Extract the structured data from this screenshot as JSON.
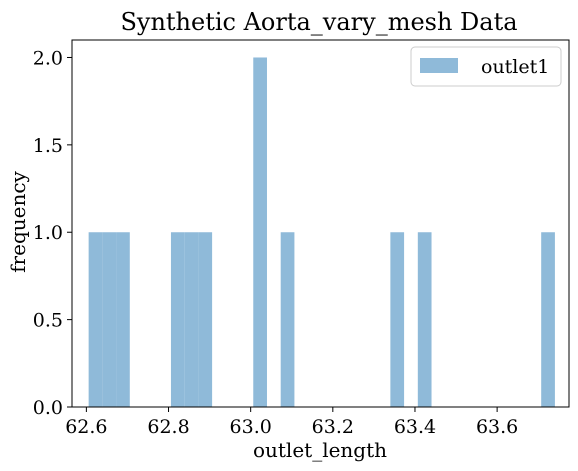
{
  "chart_data": {
    "type": "bar",
    "title": "Synthetic Aorta_vary_mesh Data",
    "xlabel": "outlet_length",
    "ylabel": "frequency",
    "xlim": [
      62.565,
      63.775
    ],
    "ylim": [
      0.0,
      2.1
    ],
    "xticks": [
      "62.6",
      "62.8",
      "63.0",
      "63.2",
      "63.4",
      "63.6"
    ],
    "xtick_values": [
      62.6,
      62.8,
      63.0,
      63.2,
      63.4,
      63.6
    ],
    "yticks": [
      "0.0",
      "0.5",
      "1.0",
      "1.5",
      "2.0"
    ],
    "ytick_values": [
      0.0,
      0.5,
      1.0,
      1.5,
      2.0
    ],
    "bin_width": 0.0334,
    "series": [
      {
        "name": "outlet1",
        "color": "#8fbad9",
        "bins": [
          {
            "x0": 62.6055,
            "x1": 62.6389,
            "count": 1
          },
          {
            "x0": 62.6389,
            "x1": 62.6723,
            "count": 1
          },
          {
            "x0": 62.6723,
            "x1": 62.7057,
            "count": 1
          },
          {
            "x0": 62.8059,
            "x1": 62.8393,
            "count": 1
          },
          {
            "x0": 62.8393,
            "x1": 62.8727,
            "count": 1
          },
          {
            "x0": 62.8727,
            "x1": 62.9061,
            "count": 1
          },
          {
            "x0": 63.0063,
            "x1": 63.0397,
            "count": 2
          },
          {
            "x0": 63.0731,
            "x1": 63.1065,
            "count": 1
          },
          {
            "x0": 63.3401,
            "x1": 63.3735,
            "count": 1
          },
          {
            "x0": 63.4069,
            "x1": 63.4403,
            "count": 1
          },
          {
            "x0": 63.7073,
            "x1": 63.7407,
            "count": 1
          }
        ]
      }
    ],
    "legend": {
      "placement": "top-right",
      "entries": [
        "outlet1"
      ]
    },
    "grid": false
  }
}
